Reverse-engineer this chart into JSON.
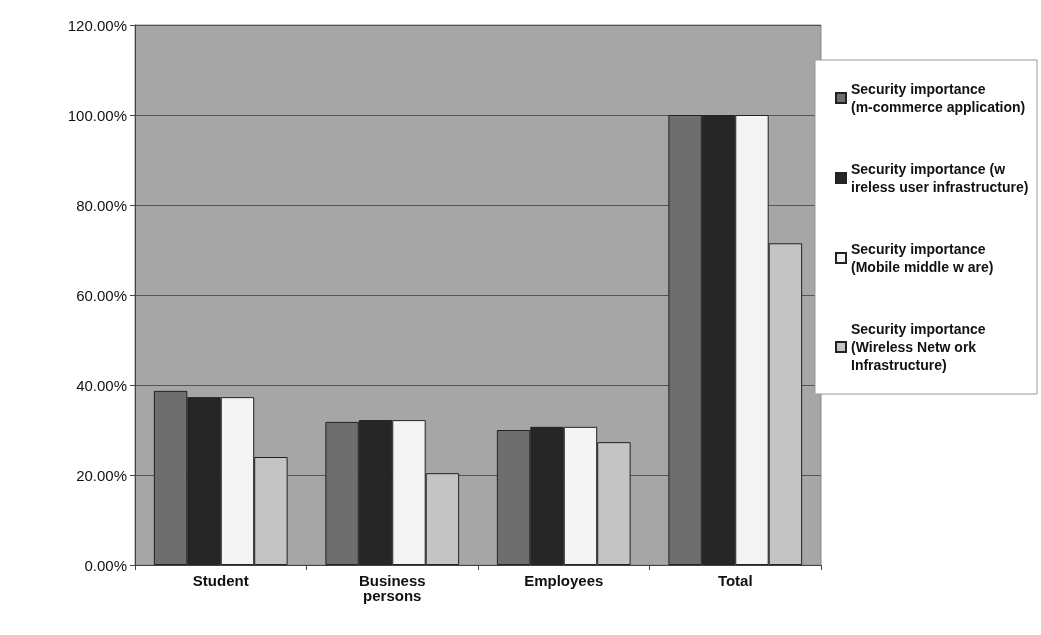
{
  "chart_data": {
    "type": "bar",
    "categories": [
      "Student",
      "Business persons",
      "Employees",
      "Total"
    ],
    "series": [
      {
        "name": "Security importance (m-commerce application)",
        "color": "#6e6e6e",
        "values": [
          38.7,
          31.8,
          30,
          100
        ]
      },
      {
        "name": "Security importance (w ireless user infrastructure)",
        "color": "#262626",
        "values": [
          37.3,
          32.2,
          30.7,
          100
        ]
      },
      {
        "name": "Security importance (Mobile middle w are)",
        "color": "#f4f4f4",
        "values": [
          37.3,
          32.2,
          30.7,
          100
        ]
      },
      {
        "name": "Security importance (Wireless Netw ork Infrastructure)",
        "color": "#c4c4c4",
        "values": [
          24,
          20.4,
          27.3,
          71.5
        ]
      }
    ],
    "ylim": [
      0,
      120
    ],
    "yticks": [
      {
        "value": 0,
        "label": "0.00%"
      },
      {
        "value": 20,
        "label": "20.00%"
      },
      {
        "value": 40,
        "label": "40.00%"
      },
      {
        "value": 60,
        "label": "60.00%"
      },
      {
        "value": 80,
        "label": "80.00%"
      },
      {
        "value": 100,
        "label": "100.00%"
      },
      {
        "value": 120,
        "label": "120.00%"
      }
    ],
    "grid": "y",
    "legend": "right"
  }
}
